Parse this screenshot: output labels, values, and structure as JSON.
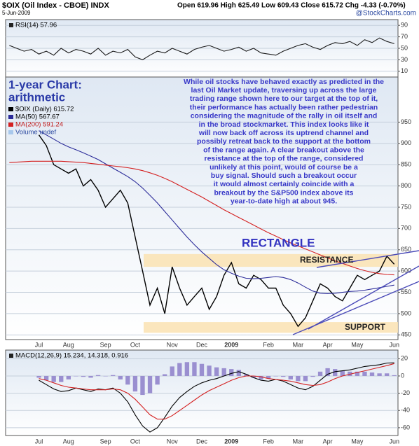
{
  "header": {
    "symbol": "$OIX (Oil Index - CBOE) INDX",
    "date": "5-Jun-2009",
    "quote": "Open 619.96 High 625.49 Low 609.43 Close 615.72 Chg -4.33 (-0.70%)",
    "source": "@StockCharts.com"
  },
  "notes": {
    "chart_kind": [
      "1-year Chart:",
      "arithmetic"
    ],
    "comment": [
      "While oil stocks have behaved exactly as predicted in the",
      "last Oil Market update, traversing up across the large",
      "trading range shown here to our target at the top of it,",
      "their performance has actually been rather pedestrian",
      "considering the magnitude of the rally in oil itself and",
      "in the broad stockmarket. This index looks like it",
      "will now back off across its uptrend channel and",
      "possibly retreat back to the support at the bottom",
      "of the range again. A clear breakout above the",
      "resistance at the top of the range, considered",
      "unlikely at this point, would of course be a",
      "buy signal. Should such a breakout occur",
      "it would almost certainly coincide with a",
      "breakout by the S&P500 index above its",
      "year-to-date high at about 945."
    ],
    "pattern": "RECTANGLE"
  },
  "chart_data": [
    {
      "type": "line",
      "legend": "RSI(14) 57.96",
      "ylim": [
        0,
        100
      ],
      "yticks": [
        10,
        30,
        50,
        70,
        90
      ],
      "grid": true,
      "series": [
        {
          "color": "#1a1a1a",
          "values": [
            55,
            50,
            45,
            48,
            40,
            45,
            38,
            50,
            42,
            48,
            45,
            40,
            50,
            38,
            45,
            42,
            48,
            35,
            30,
            38,
            45,
            42,
            50,
            45,
            40,
            48,
            52,
            55,
            50,
            45,
            48,
            52,
            45,
            50,
            42,
            40,
            38,
            45,
            50,
            55,
            58,
            52,
            48,
            55,
            60,
            58,
            62,
            55,
            65,
            60,
            68,
            62,
            58
          ]
        }
      ]
    },
    {
      "type": "line",
      "ylim": [
        439,
        1056
      ],
      "yticks": [
        450,
        500,
        550,
        600,
        650,
        700,
        750,
        800,
        850,
        900,
        950
      ],
      "grid": true,
      "categories": [
        null,
        null,
        null,
        null,
        "Jul",
        null,
        null,
        null,
        "Aug",
        null,
        null,
        null,
        null,
        "Sep",
        null,
        null,
        null,
        "Oct",
        null,
        null,
        null,
        null,
        "Nov",
        null,
        null,
        null,
        "Dec",
        null,
        null,
        null,
        "2009",
        null,
        null,
        null,
        null,
        "Feb",
        null,
        null,
        null,
        "Mar",
        null,
        null,
        null,
        "Apr",
        null,
        null,
        null,
        "May",
        null,
        null,
        null,
        null,
        "Jun"
      ],
      "volume_legend": "Volume undef",
      "bands": [
        {
          "label": "RESISTANCE",
          "range": [
            610,
            640
          ]
        },
        {
          "label": "SUPPORT",
          "range": [
            455,
            480
          ]
        }
      ],
      "series": [
        {
          "name": "$OIX (Daily) 615.72",
          "color": "#000000",
          "values": [
            null,
            null,
            null,
            null,
            920,
            895,
            850,
            840,
            830,
            840,
            800,
            815,
            790,
            750,
            770,
            790,
            760,
            680,
            600,
            520,
            560,
            500,
            610,
            560,
            520,
            540,
            560,
            510,
            540,
            590,
            620,
            570,
            560,
            590,
            580,
            560,
            560,
            520,
            500,
            470,
            490,
            530,
            570,
            560,
            540,
            530,
            560,
            590,
            580,
            590,
            600,
            635,
            616
          ]
        },
        {
          "name": "MA(50) 567.67",
          "color": "#2b2b99",
          "values": [
            null,
            null,
            null,
            null,
            930,
            920,
            910,
            900,
            892,
            885,
            878,
            870,
            862,
            852,
            842,
            832,
            822,
            810,
            795,
            778,
            760,
            740,
            720,
            700,
            680,
            662,
            645,
            630,
            615,
            603,
            595,
            588,
            583,
            582,
            583,
            585,
            587,
            585,
            580,
            572,
            562,
            553,
            548,
            547,
            548,
            550,
            552,
            553,
            555,
            558,
            561,
            564,
            567
          ]
        },
        {
          "name": "MA(200) 591.24",
          "color": "#d42020",
          "values": [
            855,
            856,
            857,
            858,
            858,
            858,
            858,
            858,
            857,
            856,
            855,
            853,
            851,
            849,
            847,
            845,
            843,
            840,
            836,
            831,
            825,
            818,
            810,
            801,
            792,
            783,
            774,
            764,
            754,
            744,
            735,
            726,
            717,
            708,
            699,
            690,
            682,
            674,
            666,
            659,
            652,
            645,
            638,
            631,
            624,
            618,
            612,
            606,
            601,
            597,
            594,
            592,
            591
          ]
        }
      ]
    },
    {
      "type": "line",
      "legend": "MACD(12,26,9) 15.234, 14.318, 0.916",
      "ylim": [
        -69,
        30
      ],
      "yticks": [
        20,
        0,
        -20,
        -40,
        -60
      ],
      "grid": true,
      "categories": [
        null,
        null,
        null,
        null,
        "Jul",
        null,
        null,
        null,
        "Aug",
        null,
        null,
        null,
        null,
        "Sep",
        null,
        null,
        null,
        "Oct",
        null,
        null,
        null,
        null,
        "Nov",
        null,
        null,
        null,
        "Dec",
        null,
        null,
        null,
        "2009",
        null,
        null,
        null,
        null,
        "Feb",
        null,
        null,
        null,
        "Mar",
        null,
        null,
        null,
        "Apr",
        null,
        null,
        null,
        "May",
        null,
        null,
        null,
        null,
        "Jun"
      ],
      "series": [
        {
          "kind": "bar",
          "color": "#9a8fd0",
          "values": [
            null,
            null,
            null,
            null,
            -2,
            -5,
            -7,
            -7,
            -4,
            0,
            -1,
            -2,
            1,
            0,
            1,
            -4,
            -10,
            -18,
            -22,
            -20,
            -10,
            2,
            11,
            15,
            16,
            16,
            14,
            12,
            10,
            9,
            8,
            7,
            2,
            -2,
            -4,
            -3,
            0,
            -1,
            -4,
            -6,
            -6,
            -1,
            5,
            9,
            8,
            6,
            5,
            5,
            5,
            4,
            3,
            3,
            0.9
          ]
        },
        {
          "color": "#000000",
          "values": [
            null,
            null,
            null,
            null,
            -5,
            -10,
            -15,
            -18,
            -17,
            -14,
            -16,
            -18,
            -15,
            -16,
            -14,
            -20,
            -30,
            -45,
            -58,
            -65,
            -60,
            -48,
            -35,
            -25,
            -18,
            -12,
            -8,
            -5,
            -3,
            0,
            3,
            5,
            2,
            -2,
            -5,
            -6,
            -4,
            -6,
            -10,
            -14,
            -16,
            -12,
            -5,
            2,
            5,
            6,
            7,
            9,
            11,
            12,
            13,
            15,
            15.2
          ]
        },
        {
          "color": "#d42020",
          "values": [
            null,
            null,
            null,
            null,
            -3,
            -5,
            -8,
            -11,
            -13,
            -14,
            -15,
            -16,
            -16,
            -16,
            -15,
            -16,
            -20,
            -27,
            -36,
            -45,
            -50,
            -50,
            -46,
            -40,
            -34,
            -28,
            -22,
            -17,
            -13,
            -9,
            -5,
            -2,
            0,
            0,
            -1,
            -3,
            -4,
            -5,
            -6,
            -8,
            -10,
            -11,
            -10,
            -7,
            -3,
            0,
            2,
            4,
            6,
            8,
            10,
            12,
            14.3
          ]
        }
      ]
    }
  ]
}
